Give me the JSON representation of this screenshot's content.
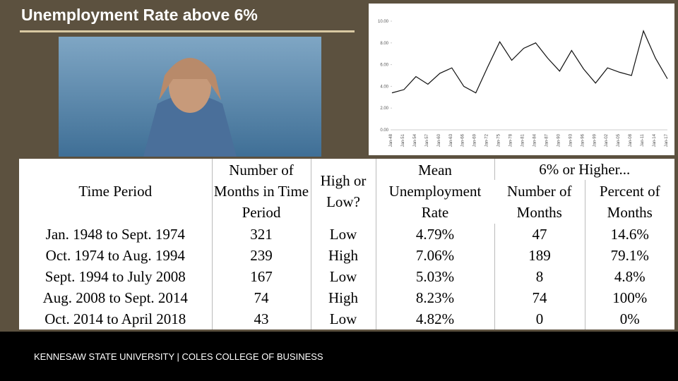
{
  "title": "Unemployment Rate above 6%",
  "table": {
    "header": {
      "period": "Time Period",
      "months": "Number of Months in Time Period",
      "high_low": "High or Low?",
      "mean": "Mean Unemployment Rate",
      "group": "6% or Higher...",
      "count": "Number of Months",
      "percent": "Percent of Months"
    },
    "rows": [
      [
        "Jan. 1948 to Sept. 1974",
        "321",
        "Low",
        "4.79%",
        "47",
        "14.6%"
      ],
      [
        "Oct. 1974 to Aug. 1994",
        "239",
        "High",
        "7.06%",
        "189",
        "79.1%"
      ],
      [
        "Sept. 1994 to July 2008",
        "167",
        "Low",
        "5.03%",
        "8",
        "4.8%"
      ],
      [
        "Aug. 2008 to Sept. 2014",
        "74",
        "High",
        "8.23%",
        "74",
        "100%"
      ],
      [
        "Oct. 2014 to April 2018",
        "43",
        "Low",
        "4.82%",
        "0",
        "0%"
      ]
    ]
  },
  "footer": "KENNESAW STATE UNIVERSITY | COLES COLLEGE OF BUSINESS",
  "chart_data": {
    "type": "line",
    "color": "#111111",
    "categories": [
      "Jan-48",
      "Jan-51",
      "Jan-54",
      "Jan-57",
      "Jan-60",
      "Jan-63",
      "Jan-66",
      "Jan-69",
      "Jan-72",
      "Jan-75",
      "Jan-78",
      "Jan-81",
      "Jan-84",
      "Jan-87",
      "Jan-90",
      "Jan-93",
      "Jan-96",
      "Jan-99",
      "Jan-02",
      "Jan-05",
      "Jan-08",
      "Jan-11",
      "Jan-14",
      "Jan-17"
    ],
    "values": [
      3.4,
      3.7,
      4.9,
      4.2,
      5.2,
      5.7,
      4.0,
      3.4,
      5.8,
      8.1,
      6.4,
      7.5,
      8.0,
      6.6,
      5.4,
      7.3,
      5.6,
      4.3,
      5.7,
      5.3,
      5.0,
      9.1,
      6.6,
      4.7
    ],
    "ylim": [
      0,
      11
    ],
    "yticks": [
      {
        "value": 0,
        "label": "0.00"
      },
      {
        "value": 2,
        "label": "2.00"
      },
      {
        "value": 4,
        "label": "4.00"
      },
      {
        "value": 6,
        "label": "6.00"
      },
      {
        "value": 8,
        "label": "8.00"
      },
      {
        "value": 10,
        "label": "10.00"
      }
    ]
  }
}
